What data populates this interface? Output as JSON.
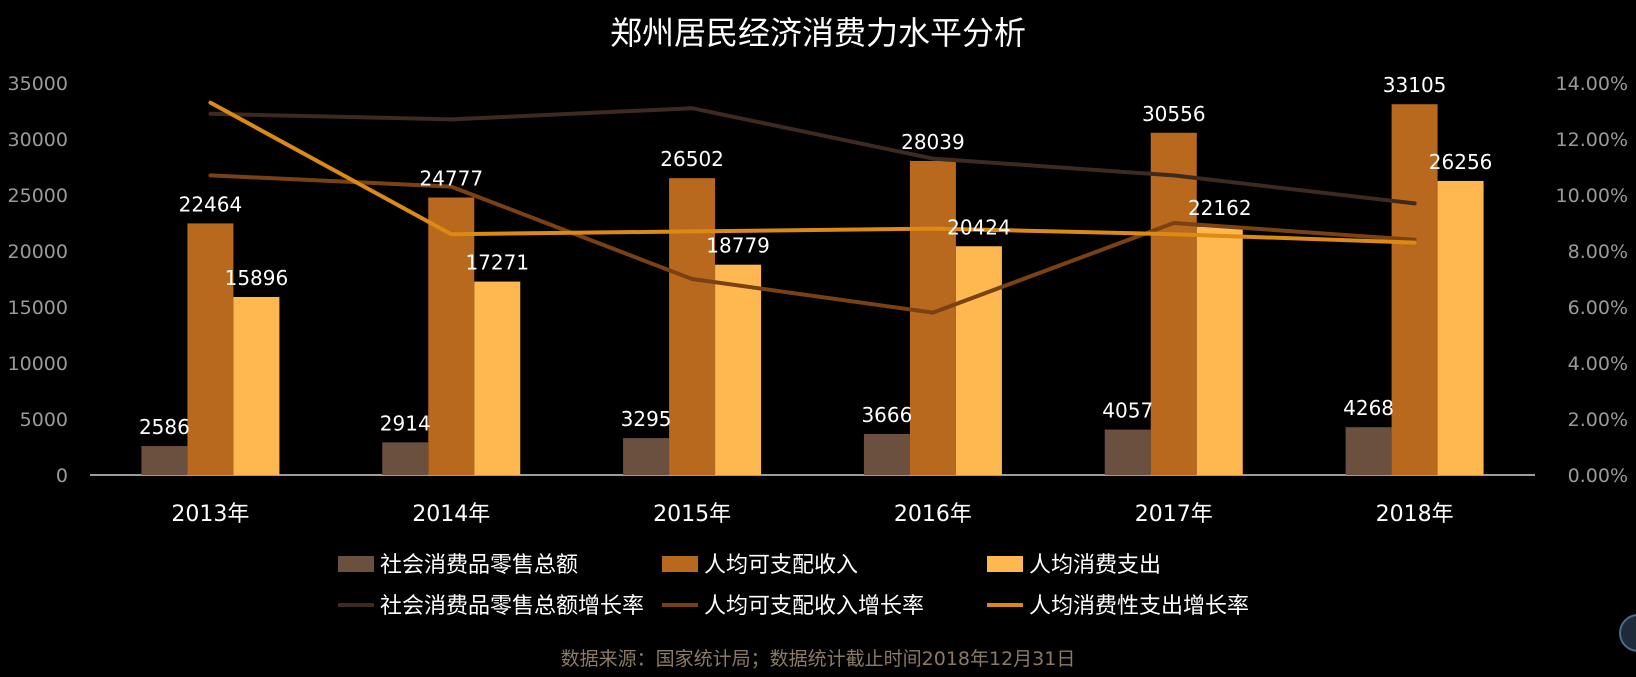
{
  "chart_data": {
    "type": "bar",
    "title": "郑州居民经济消费力水平分析",
    "categories": [
      "2013年",
      "2014年",
      "2015年",
      "2016年",
      "2017年",
      "2018年"
    ],
    "y_left": {
      "ticks": [
        "0",
        "5000",
        "10000",
        "15000",
        "20000",
        "25000",
        "30000",
        "35000"
      ],
      "lim": [
        0,
        35000
      ]
    },
    "y_right": {
      "ticks": [
        "0.00%",
        "2.00%",
        "4.00%",
        "6.00%",
        "8.00%",
        "10.00%",
        "12.00%",
        "14.00%"
      ],
      "lim": [
        0,
        14
      ]
    },
    "bar_series": [
      {
        "name": "社会消费品零售总额",
        "color": "#6b5040",
        "values": [
          2586,
          2914,
          3295,
          3666,
          4057,
          4268
        ]
      },
      {
        "name": "人均可支配收入",
        "color": "#b8691e",
        "values": [
          22464,
          24777,
          26502,
          28039,
          30556,
          33105
        ]
      },
      {
        "name": "人均消费支出",
        "color": "#ffb84f",
        "values": [
          15896,
          17271,
          18779,
          20424,
          22162,
          26256
        ]
      }
    ],
    "line_series": [
      {
        "name": "社会消费品零售总额增长率",
        "color": "#3e2a1f",
        "values": [
          12.9,
          12.7,
          13.1,
          11.3,
          10.7,
          9.7
        ]
      },
      {
        "name": "人均可支配收入增长率",
        "color": "#7a4212",
        "values": [
          10.7,
          10.3,
          7.0,
          5.8,
          9.0,
          8.4
        ]
      },
      {
        "name": "人均消费性支出增长率",
        "color": "#dc8a12",
        "values": [
          13.3,
          8.6,
          8.7,
          8.8,
          8.6,
          8.3
        ]
      }
    ],
    "axis_color": "#9a9a9a",
    "legend_position": "bottom"
  },
  "source_note": "数据来源：国家统计局；数据统计截止时间2018年12月31日"
}
